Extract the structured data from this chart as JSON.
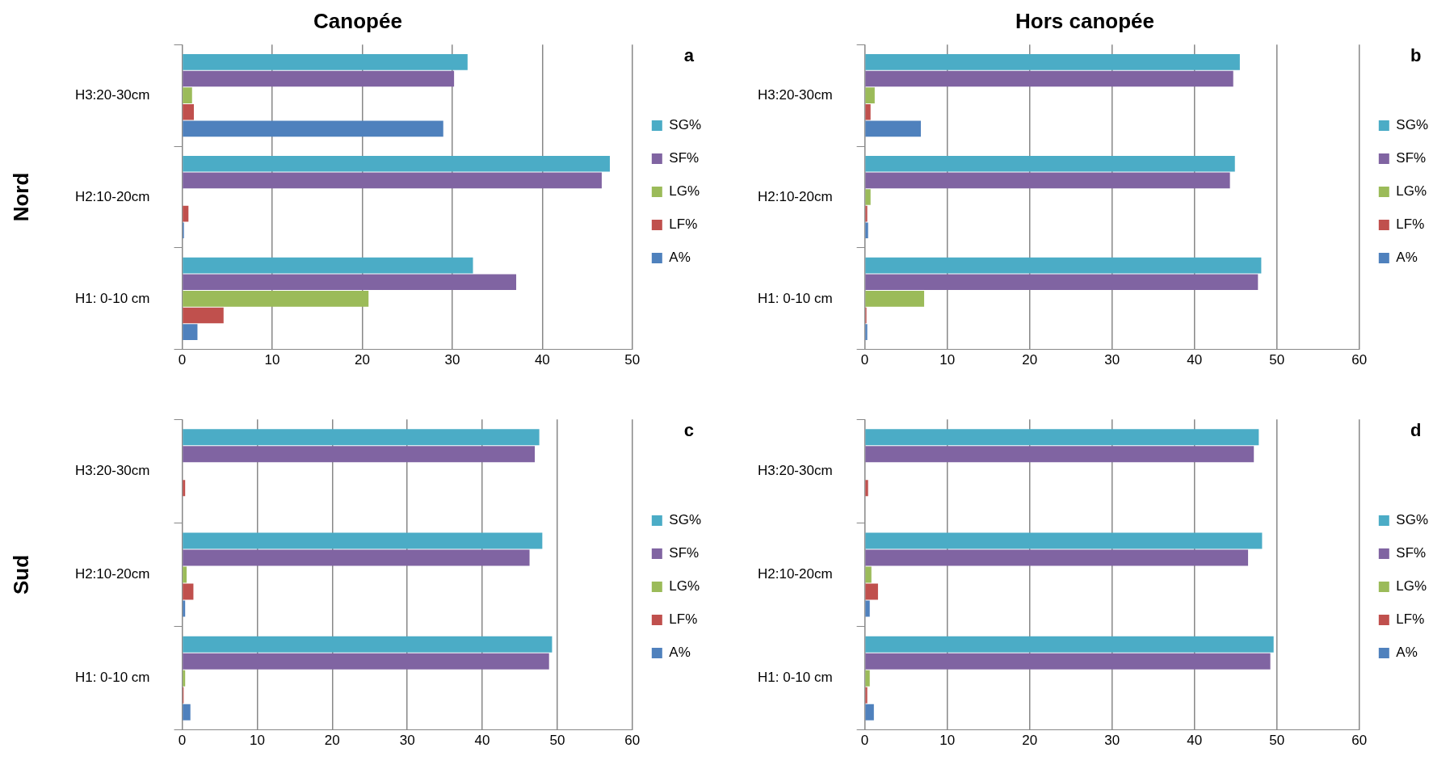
{
  "chart_data": [
    {
      "type": "bar",
      "orientation": "horizontal",
      "title": "Canopée",
      "ylabel": "Nord",
      "annotations": [
        "a"
      ],
      "categories": [
        "H3:20-30cm",
        "H2:10-20cm",
        "H1: 0-10 cm"
      ],
      "xlim": [
        0,
        50
      ],
      "xticks": [
        0,
        10,
        20,
        30,
        40,
        50
      ],
      "grid": "x",
      "legend": "right",
      "series": [
        {
          "name": "SG%",
          "color": "#4bacc6",
          "values": [
            31.7,
            47.5,
            32.3
          ]
        },
        {
          "name": "SF%",
          "color": "#8064a2",
          "values": [
            30.2,
            46.6,
            37.1
          ]
        },
        {
          "name": "LG%",
          "color": "#9bbb59",
          "values": [
            1.1,
            0,
            20.7
          ]
        },
        {
          "name": "LF%",
          "color": "#c0504d",
          "values": [
            1.3,
            0.7,
            4.6
          ]
        },
        {
          "name": "A%",
          "color": "#4f81bd",
          "values": [
            29.0,
            0.2,
            1.7
          ]
        }
      ]
    },
    {
      "type": "bar",
      "orientation": "horizontal",
      "title": "Hors canopée",
      "annotations": [
        "b"
      ],
      "categories": [
        "H3:20-30cm",
        "H2:10-20cm",
        "H1: 0-10 cm"
      ],
      "xlim": [
        0,
        60
      ],
      "xticks": [
        0,
        10,
        20,
        30,
        40,
        50,
        60
      ],
      "grid": "x",
      "legend": "right",
      "series": [
        {
          "name": "SG%",
          "color": "#4bacc6",
          "values": [
            45.5,
            44.9,
            48.1
          ]
        },
        {
          "name": "SF%",
          "color": "#8064a2",
          "values": [
            44.7,
            44.3,
            47.7
          ]
        },
        {
          "name": "LG%",
          "color": "#9bbb59",
          "values": [
            1.2,
            0.7,
            7.2
          ]
        },
        {
          "name": "LF%",
          "color": "#c0504d",
          "values": [
            0.7,
            0.3,
            0.2
          ]
        },
        {
          "name": "A%",
          "color": "#4f81bd",
          "values": [
            6.8,
            0.4,
            0.3
          ]
        }
      ]
    },
    {
      "type": "bar",
      "orientation": "horizontal",
      "ylabel": "Sud",
      "annotations": [
        "c"
      ],
      "categories": [
        "H3:20-30cm",
        "H2:10-20cm",
        "H1: 0-10 cm"
      ],
      "xlim": [
        0,
        60
      ],
      "xticks": [
        0,
        10,
        20,
        30,
        40,
        50,
        60
      ],
      "grid": "x",
      "legend": "right",
      "series": [
        {
          "name": "SG%",
          "color": "#4bacc6",
          "values": [
            47.6,
            48.0,
            49.3
          ]
        },
        {
          "name": "SF%",
          "color": "#8064a2",
          "values": [
            47.0,
            46.3,
            48.9
          ]
        },
        {
          "name": "LG%",
          "color": "#9bbb59",
          "values": [
            0,
            0.6,
            0.4
          ]
        },
        {
          "name": "LF%",
          "color": "#c0504d",
          "values": [
            0.4,
            1.5,
            0.2
          ]
        },
        {
          "name": "A%",
          "color": "#4f81bd",
          "values": [
            0,
            0.4,
            1.1
          ]
        }
      ]
    },
    {
      "type": "bar",
      "orientation": "horizontal",
      "annotations": [
        "d"
      ],
      "categories": [
        "H3:20-30cm",
        "H2:10-20cm",
        "H1: 0-10 cm"
      ],
      "xlim": [
        0,
        60
      ],
      "xticks": [
        0,
        10,
        20,
        30,
        40,
        50,
        60
      ],
      "grid": "x",
      "legend": "right",
      "series": [
        {
          "name": "SG%",
          "color": "#4bacc6",
          "values": [
            47.8,
            48.2,
            49.6
          ]
        },
        {
          "name": "SF%",
          "color": "#8064a2",
          "values": [
            47.2,
            46.5,
            49.2
          ]
        },
        {
          "name": "LG%",
          "color": "#9bbb59",
          "values": [
            0,
            0.8,
            0.6
          ]
        },
        {
          "name": "LF%",
          "color": "#c0504d",
          "values": [
            0.4,
            1.6,
            0.3
          ]
        },
        {
          "name": "A%",
          "color": "#4f81bd",
          "values": [
            0,
            0.6,
            1.1
          ]
        }
      ]
    }
  ]
}
